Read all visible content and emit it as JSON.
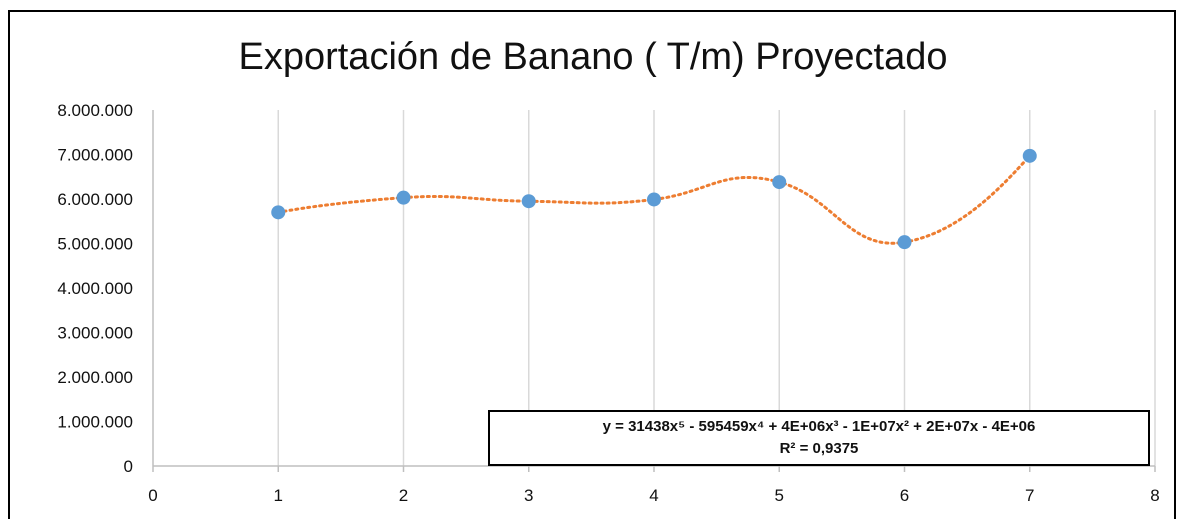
{
  "chart_data": {
    "type": "scatter",
    "title": "Exportación de Banano ( T/m) Proyectado",
    "xlabel": "",
    "ylabel": "",
    "xlim": [
      0,
      8
    ],
    "ylim": [
      0,
      8000000
    ],
    "x_ticks": [
      "0",
      "1",
      "2",
      "3",
      "4",
      "5",
      "6",
      "7",
      "8"
    ],
    "y_ticks": [
      "0",
      "1.000.000",
      "2.000.000",
      "3.000.000",
      "4.000.000",
      "5.000.000",
      "6.000.000",
      "7.000.000",
      "8.000.000"
    ],
    "grid": "vertical",
    "series": [
      {
        "x": [
          1,
          2,
          3,
          4,
          5,
          6,
          7
        ],
        "y": [
          5700000,
          6030000,
          5950000,
          5990000,
          6380000,
          5030000,
          6970000
        ],
        "color": "#5b9bd5"
      }
    ],
    "trendline": {
      "type": "polynomial",
      "order": 5,
      "color": "#ed7d31",
      "style": "dotted",
      "equation": "y = 31438x⁵ - 595459x⁴ + 4E+06x³ - 1E+07x² + 2E+07x - 4E+06",
      "r_squared": "R² = 0,9375"
    }
  }
}
